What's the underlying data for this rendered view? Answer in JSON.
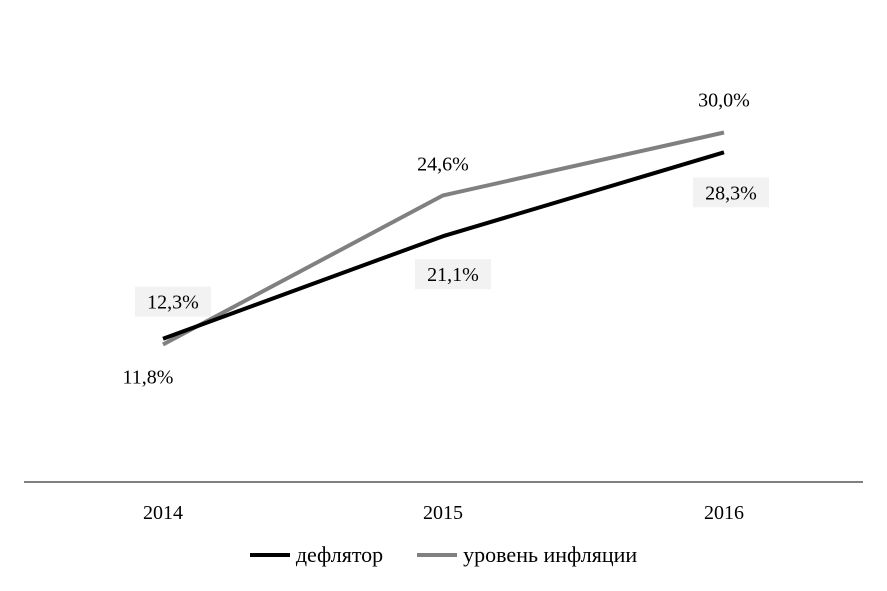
{
  "chart_data": {
    "type": "line",
    "categories": [
      "2014",
      "2015",
      "2016"
    ],
    "series": [
      {
        "name": "дефлятор",
        "values": [
          12.3,
          21.1,
          28.3
        ],
        "labels": [
          "12,3%",
          "21,1%",
          "28,3%"
        ],
        "color": "#000000"
      },
      {
        "name": "уровень инфляции",
        "values": [
          11.8,
          24.6,
          30.0
        ],
        "labels": [
          "11,8%",
          "24,6%",
          "30,0%"
        ],
        "color": "#808080"
      }
    ],
    "ylim": [
      0,
      35
    ],
    "label_box_color": "#f2f2f2",
    "legend_position": "bottom"
  }
}
